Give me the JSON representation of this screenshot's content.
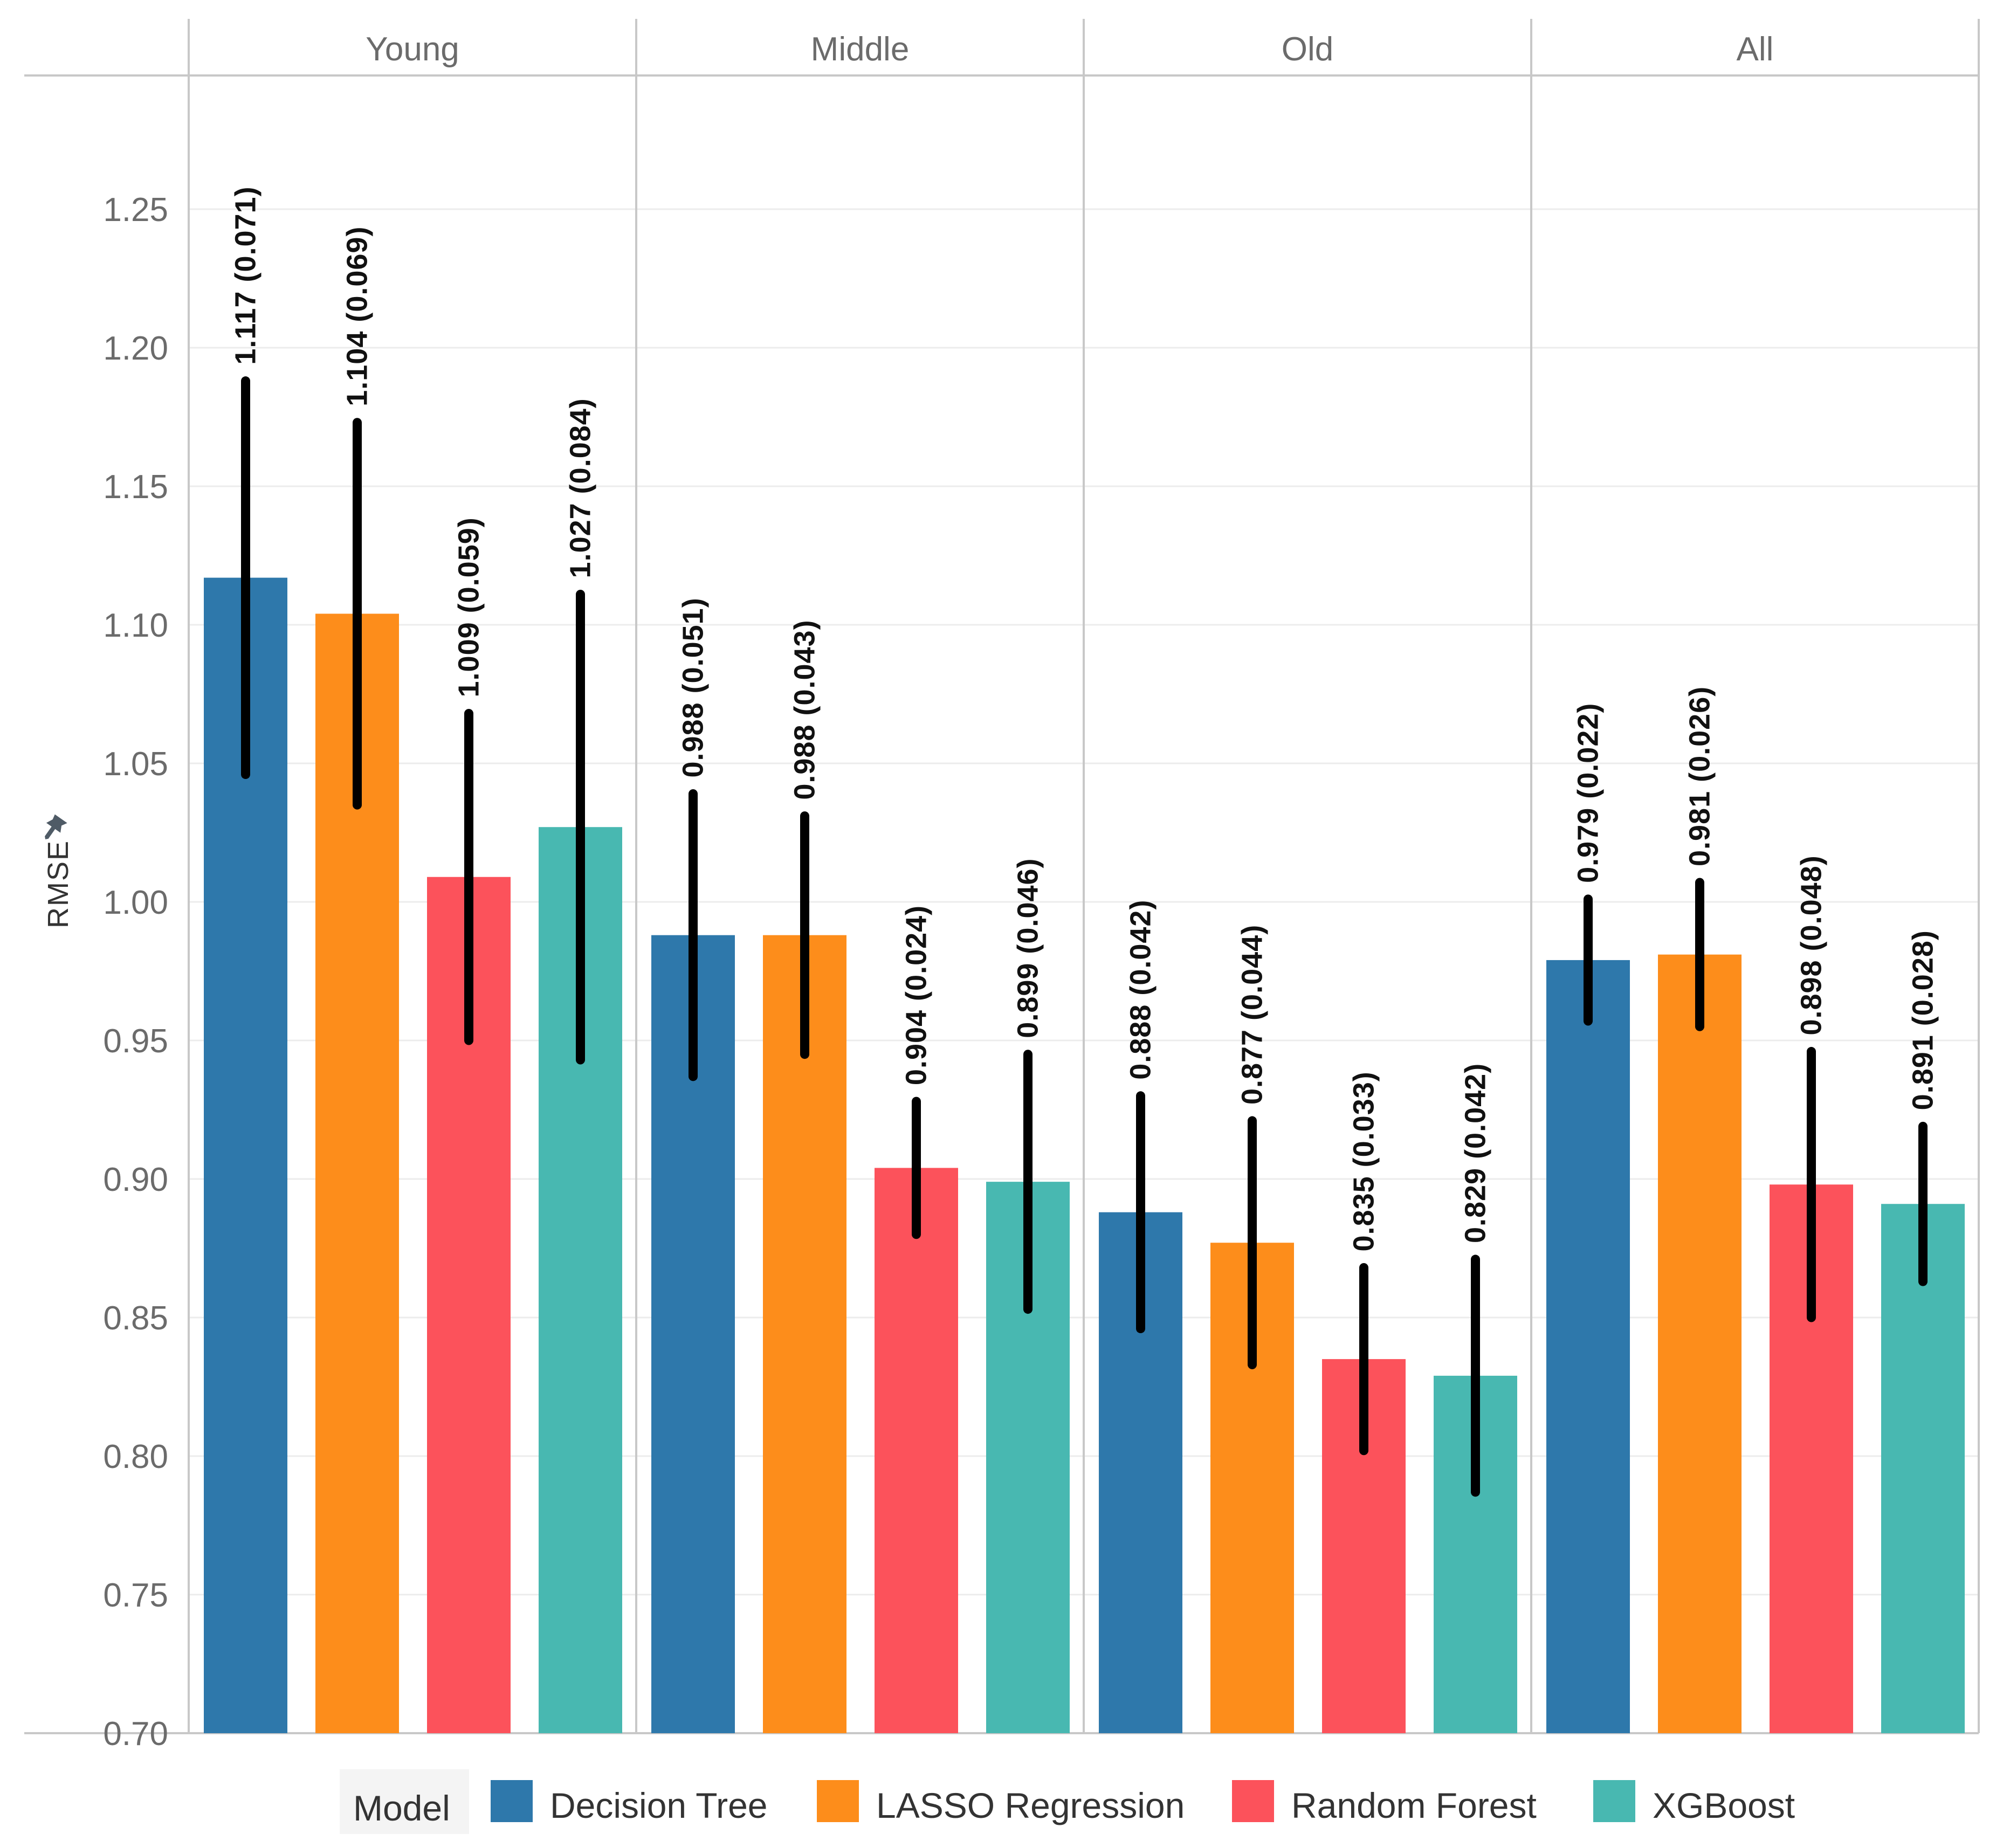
{
  "chart_data": {
    "type": "bar",
    "panels": [
      "Young",
      "Middle",
      "Old",
      "All"
    ],
    "ylabel": "RMSE",
    "ylim": [
      0.7,
      1.3
    ],
    "yticks": [
      "0.70",
      "0.75",
      "0.80",
      "0.85",
      "0.90",
      "0.95",
      "1.00",
      "1.05",
      "1.10",
      "1.15",
      "1.20",
      "1.25"
    ],
    "legend_title": "Model",
    "legend_position": "bottom",
    "grid": true,
    "series": [
      {
        "name": "Decision Tree",
        "color": "#2e78ab",
        "values": [
          1.117,
          0.988,
          0.888,
          0.979
        ],
        "errors": [
          0.071,
          0.051,
          0.042,
          0.022
        ],
        "labels": [
          "1.117 (0.071)",
          "0.988 (0.051)",
          "0.888 (0.042)",
          "0.979 (0.022)"
        ]
      },
      {
        "name": "LASSO Regression",
        "color": "#fd8d1b",
        "values": [
          1.104,
          0.988,
          0.877,
          0.981
        ],
        "errors": [
          0.069,
          0.043,
          0.044,
          0.026
        ],
        "labels": [
          "1.104 (0.069)",
          "0.988 (0.043)",
          "0.877 (0.044)",
          "0.981 (0.026)"
        ]
      },
      {
        "name": "Random Forest",
        "color": "#fc525b",
        "values": [
          1.009,
          0.904,
          0.835,
          0.898
        ],
        "errors": [
          0.059,
          0.024,
          0.033,
          0.048
        ],
        "labels": [
          "1.009 (0.059)",
          "0.904 (0.024)",
          "0.835 (0.033)",
          "0.898 (0.048)"
        ]
      },
      {
        "name": "XGBoost",
        "color": "#48b8b1",
        "values": [
          1.027,
          0.899,
          0.829,
          0.891
        ],
        "errors": [
          0.084,
          0.046,
          0.042,
          0.028
        ],
        "labels": [
          "1.027 (0.084)",
          "0.899 (0.046)",
          "0.829 (0.042)",
          "0.891 (0.028)"
        ]
      }
    ]
  }
}
